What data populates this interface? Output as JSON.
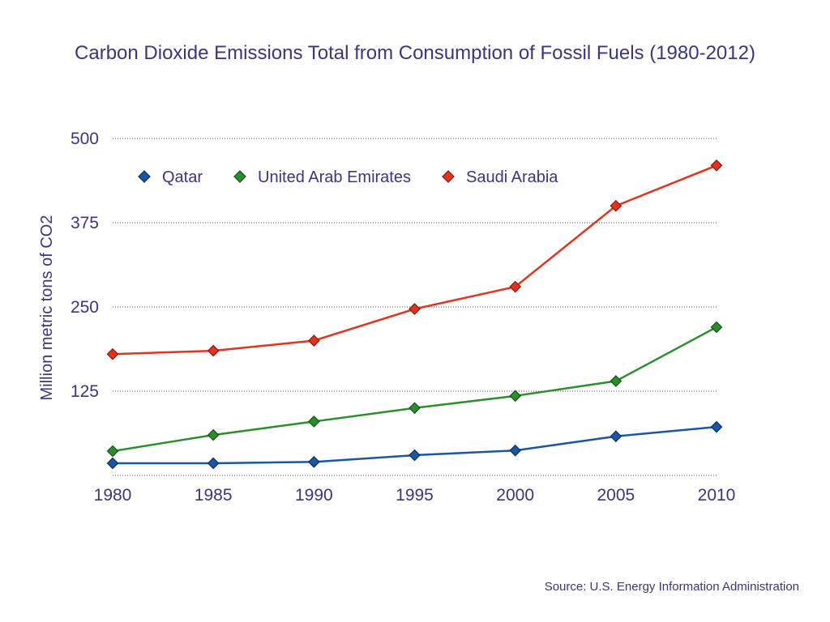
{
  "chart_data": {
    "type": "line",
    "title": "Carbon Dioxide Emissions Total from Consumption of Fossil Fuels (1980-2012)",
    "ylabel": "Million metric tons of CO2",
    "xlabel": "",
    "x": [
      "1980",
      "1985",
      "1990",
      "1995",
      "2000",
      "2005",
      "2010"
    ],
    "ylim": [
      0,
      500
    ],
    "yticks": [
      "500",
      "375",
      "250",
      "125"
    ],
    "ytick_values": [
      500,
      375,
      250,
      125
    ],
    "grid": "horizontal dotted",
    "legend_position": "top-left",
    "series": [
      {
        "name": "Qatar",
        "color": "#1a56a6",
        "values": [
          18,
          18,
          20,
          30,
          37,
          58,
          72
        ]
      },
      {
        "name": "United Arab Emirates",
        "color": "#2a8f2a",
        "values": [
          36,
          60,
          80,
          100,
          118,
          140,
          220
        ]
      },
      {
        "name": "Saudi Arabia",
        "color": "#e8311c",
        "values": [
          180,
          185,
          200,
          247,
          280,
          400,
          460
        ]
      }
    ]
  },
  "source": "Source: U.S. Energy Information Administration"
}
